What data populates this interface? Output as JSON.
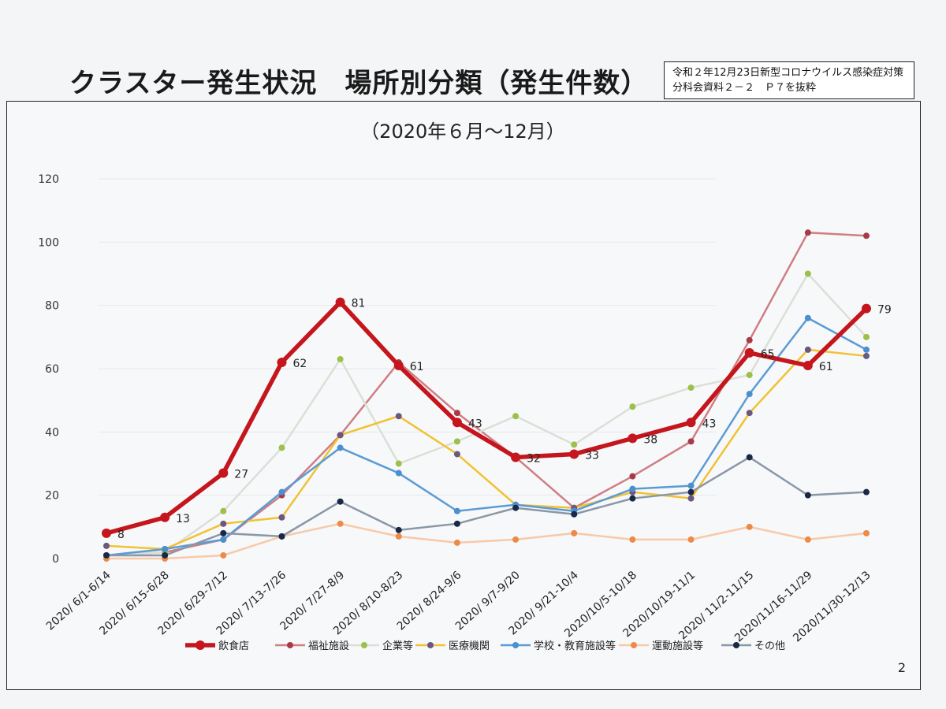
{
  "page": {
    "title": "クラスター発生状況　場所別分類（発生件数）",
    "source_line1": "令和２年12月23日新型コロナウイルス感染症対策",
    "source_line2": "分科会資料２－２　Ｐ７を抜粋",
    "page_number": "2"
  },
  "chart_data": {
    "type": "line",
    "title": "（2020年６月～12月）",
    "xlabel": "",
    "ylabel": "",
    "ylim": [
      0,
      120
    ],
    "yticks": [
      0,
      20,
      40,
      60,
      80,
      100,
      120
    ],
    "grid": true,
    "legend_position": "bottom",
    "categories": [
      "2020/ 6/1-6/14",
      "2020/ 6/15-6/28",
      "2020/ 6/29-7/12",
      "2020/ 7/13-7/26",
      "2020/ 7/27-8/9",
      "2020/ 8/10-8/23",
      "2020/ 8/24-9/6",
      "2020/ 9/7-9/20",
      "2020/ 9/21-10/4",
      "2020/10/5-10/18",
      "2020/10/19-11/1",
      "2020/ 11/2-11/15",
      "2020/11/16-11/29",
      "2020/11/30-12/13"
    ],
    "series": [
      {
        "name": "福祉施設",
        "color": "#cf7e84",
        "width": 2.5,
        "marker": "#a83a48",
        "values": [
          1,
          2,
          6,
          20,
          39,
          62,
          46,
          32,
          16,
          26,
          37,
          69,
          103,
          102
        ]
      },
      {
        "name": "企業等",
        "color": "#dcdfd6",
        "width": 2.5,
        "marker": "#9cc04a",
        "values": [
          1,
          2,
          15,
          35,
          63,
          30,
          37,
          45,
          36,
          48,
          54,
          58,
          90,
          70
        ]
      },
      {
        "name": "医療機関",
        "color": "#f1c232",
        "width": 2.5,
        "marker": "#6a5880",
        "values": [
          4,
          3,
          11,
          13,
          39,
          45,
          33,
          17,
          16,
          21,
          19,
          46,
          66,
          64
        ]
      },
      {
        "name": "学校・教育施設等",
        "color": "#5b9bd5",
        "width": 2.5,
        "marker": "#4a8fcf",
        "values": [
          1,
          3,
          6,
          21,
          35,
          27,
          15,
          17,
          15,
          22,
          23,
          52,
          76,
          66
        ]
      },
      {
        "name": "運動施設等",
        "color": "#f8c9a8",
        "width": 2.5,
        "marker": "#ec8a4a",
        "values": [
          0,
          0,
          1,
          7,
          11,
          7,
          5,
          6,
          8,
          6,
          6,
          10,
          6,
          8
        ]
      },
      {
        "name": "その他",
        "color": "#8a97a6",
        "width": 2.5,
        "marker": "#182845",
        "values": [
          1,
          1,
          8,
          7,
          18,
          9,
          11,
          16,
          14,
          19,
          21,
          32,
          20,
          21
        ]
      },
      {
        "name": "飲食店",
        "color": "#c4161c",
        "width": 5.5,
        "marker": "#c4161c",
        "values": [
          8,
          13,
          27,
          62,
          81,
          61,
          43,
          32,
          33,
          38,
          43,
          65,
          61,
          79
        ],
        "labels": [
          "8",
          "13",
          "27",
          "62",
          "81",
          "61",
          "43",
          "32",
          "33",
          "38",
          "43",
          "65",
          "61",
          "79"
        ]
      }
    ],
    "legend": [
      {
        "name": "飲食店",
        "color": "#c4161c",
        "marker": "#c4161c",
        "width": 5.5
      },
      {
        "name": "福祉施設",
        "color": "#cf7e84",
        "marker": "#a83a48",
        "width": 2.5
      },
      {
        "name": "企業等",
        "color": "#dcdfd6",
        "marker": "#9cc04a",
        "width": 2.5
      },
      {
        "name": "医療機関",
        "color": "#f1c232",
        "marker": "#6a5880",
        "width": 2.5
      },
      {
        "name": "学校・教育施設等",
        "color": "#5b9bd5",
        "marker": "#4a8fcf",
        "width": 2.5
      },
      {
        "name": "運動施設等",
        "color": "#f8c9a8",
        "marker": "#ec8a4a",
        "width": 2.5
      },
      {
        "name": "その他",
        "color": "#8a97a6",
        "marker": "#182845",
        "width": 2.5
      }
    ]
  }
}
